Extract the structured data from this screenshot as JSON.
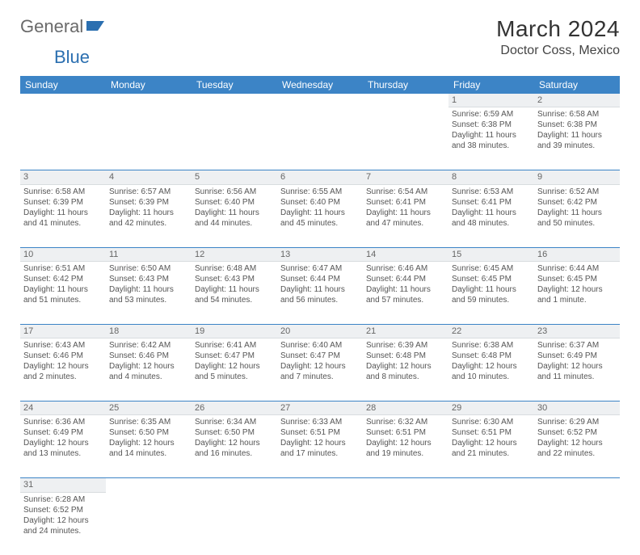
{
  "logo": {
    "text1": "General",
    "text2": "Blue"
  },
  "title": "March 2024",
  "location": "Doctor Coss, Mexico",
  "header_bg": "#3c84c6",
  "daynum_bg": "#eef0f2",
  "weekdays": [
    "Sunday",
    "Monday",
    "Tuesday",
    "Wednesday",
    "Thursday",
    "Friday",
    "Saturday"
  ],
  "weeks": [
    [
      null,
      null,
      null,
      null,
      null,
      {
        "n": "1",
        "sr": "Sunrise: 6:59 AM",
        "ss": "Sunset: 6:38 PM",
        "dl1": "Daylight: 11 hours",
        "dl2": "and 38 minutes."
      },
      {
        "n": "2",
        "sr": "Sunrise: 6:58 AM",
        "ss": "Sunset: 6:38 PM",
        "dl1": "Daylight: 11 hours",
        "dl2": "and 39 minutes."
      }
    ],
    [
      {
        "n": "3",
        "sr": "Sunrise: 6:58 AM",
        "ss": "Sunset: 6:39 PM",
        "dl1": "Daylight: 11 hours",
        "dl2": "and 41 minutes."
      },
      {
        "n": "4",
        "sr": "Sunrise: 6:57 AM",
        "ss": "Sunset: 6:39 PM",
        "dl1": "Daylight: 11 hours",
        "dl2": "and 42 minutes."
      },
      {
        "n": "5",
        "sr": "Sunrise: 6:56 AM",
        "ss": "Sunset: 6:40 PM",
        "dl1": "Daylight: 11 hours",
        "dl2": "and 44 minutes."
      },
      {
        "n": "6",
        "sr": "Sunrise: 6:55 AM",
        "ss": "Sunset: 6:40 PM",
        "dl1": "Daylight: 11 hours",
        "dl2": "and 45 minutes."
      },
      {
        "n": "7",
        "sr": "Sunrise: 6:54 AM",
        "ss": "Sunset: 6:41 PM",
        "dl1": "Daylight: 11 hours",
        "dl2": "and 47 minutes."
      },
      {
        "n": "8",
        "sr": "Sunrise: 6:53 AM",
        "ss": "Sunset: 6:41 PM",
        "dl1": "Daylight: 11 hours",
        "dl2": "and 48 minutes."
      },
      {
        "n": "9",
        "sr": "Sunrise: 6:52 AM",
        "ss": "Sunset: 6:42 PM",
        "dl1": "Daylight: 11 hours",
        "dl2": "and 50 minutes."
      }
    ],
    [
      {
        "n": "10",
        "sr": "Sunrise: 6:51 AM",
        "ss": "Sunset: 6:42 PM",
        "dl1": "Daylight: 11 hours",
        "dl2": "and 51 minutes."
      },
      {
        "n": "11",
        "sr": "Sunrise: 6:50 AM",
        "ss": "Sunset: 6:43 PM",
        "dl1": "Daylight: 11 hours",
        "dl2": "and 53 minutes."
      },
      {
        "n": "12",
        "sr": "Sunrise: 6:48 AM",
        "ss": "Sunset: 6:43 PM",
        "dl1": "Daylight: 11 hours",
        "dl2": "and 54 minutes."
      },
      {
        "n": "13",
        "sr": "Sunrise: 6:47 AM",
        "ss": "Sunset: 6:44 PM",
        "dl1": "Daylight: 11 hours",
        "dl2": "and 56 minutes."
      },
      {
        "n": "14",
        "sr": "Sunrise: 6:46 AM",
        "ss": "Sunset: 6:44 PM",
        "dl1": "Daylight: 11 hours",
        "dl2": "and 57 minutes."
      },
      {
        "n": "15",
        "sr": "Sunrise: 6:45 AM",
        "ss": "Sunset: 6:45 PM",
        "dl1": "Daylight: 11 hours",
        "dl2": "and 59 minutes."
      },
      {
        "n": "16",
        "sr": "Sunrise: 6:44 AM",
        "ss": "Sunset: 6:45 PM",
        "dl1": "Daylight: 12 hours",
        "dl2": "and 1 minute."
      }
    ],
    [
      {
        "n": "17",
        "sr": "Sunrise: 6:43 AM",
        "ss": "Sunset: 6:46 PM",
        "dl1": "Daylight: 12 hours",
        "dl2": "and 2 minutes."
      },
      {
        "n": "18",
        "sr": "Sunrise: 6:42 AM",
        "ss": "Sunset: 6:46 PM",
        "dl1": "Daylight: 12 hours",
        "dl2": "and 4 minutes."
      },
      {
        "n": "19",
        "sr": "Sunrise: 6:41 AM",
        "ss": "Sunset: 6:47 PM",
        "dl1": "Daylight: 12 hours",
        "dl2": "and 5 minutes."
      },
      {
        "n": "20",
        "sr": "Sunrise: 6:40 AM",
        "ss": "Sunset: 6:47 PM",
        "dl1": "Daylight: 12 hours",
        "dl2": "and 7 minutes."
      },
      {
        "n": "21",
        "sr": "Sunrise: 6:39 AM",
        "ss": "Sunset: 6:48 PM",
        "dl1": "Daylight: 12 hours",
        "dl2": "and 8 minutes."
      },
      {
        "n": "22",
        "sr": "Sunrise: 6:38 AM",
        "ss": "Sunset: 6:48 PM",
        "dl1": "Daylight: 12 hours",
        "dl2": "and 10 minutes."
      },
      {
        "n": "23",
        "sr": "Sunrise: 6:37 AM",
        "ss": "Sunset: 6:49 PM",
        "dl1": "Daylight: 12 hours",
        "dl2": "and 11 minutes."
      }
    ],
    [
      {
        "n": "24",
        "sr": "Sunrise: 6:36 AM",
        "ss": "Sunset: 6:49 PM",
        "dl1": "Daylight: 12 hours",
        "dl2": "and 13 minutes."
      },
      {
        "n": "25",
        "sr": "Sunrise: 6:35 AM",
        "ss": "Sunset: 6:50 PM",
        "dl1": "Daylight: 12 hours",
        "dl2": "and 14 minutes."
      },
      {
        "n": "26",
        "sr": "Sunrise: 6:34 AM",
        "ss": "Sunset: 6:50 PM",
        "dl1": "Daylight: 12 hours",
        "dl2": "and 16 minutes."
      },
      {
        "n": "27",
        "sr": "Sunrise: 6:33 AM",
        "ss": "Sunset: 6:51 PM",
        "dl1": "Daylight: 12 hours",
        "dl2": "and 17 minutes."
      },
      {
        "n": "28",
        "sr": "Sunrise: 6:32 AM",
        "ss": "Sunset: 6:51 PM",
        "dl1": "Daylight: 12 hours",
        "dl2": "and 19 minutes."
      },
      {
        "n": "29",
        "sr": "Sunrise: 6:30 AM",
        "ss": "Sunset: 6:51 PM",
        "dl1": "Daylight: 12 hours",
        "dl2": "and 21 minutes."
      },
      {
        "n": "30",
        "sr": "Sunrise: 6:29 AM",
        "ss": "Sunset: 6:52 PM",
        "dl1": "Daylight: 12 hours",
        "dl2": "and 22 minutes."
      }
    ],
    [
      {
        "n": "31",
        "sr": "Sunrise: 6:28 AM",
        "ss": "Sunset: 6:52 PM",
        "dl1": "Daylight: 12 hours",
        "dl2": "and 24 minutes."
      },
      null,
      null,
      null,
      null,
      null,
      null
    ]
  ]
}
